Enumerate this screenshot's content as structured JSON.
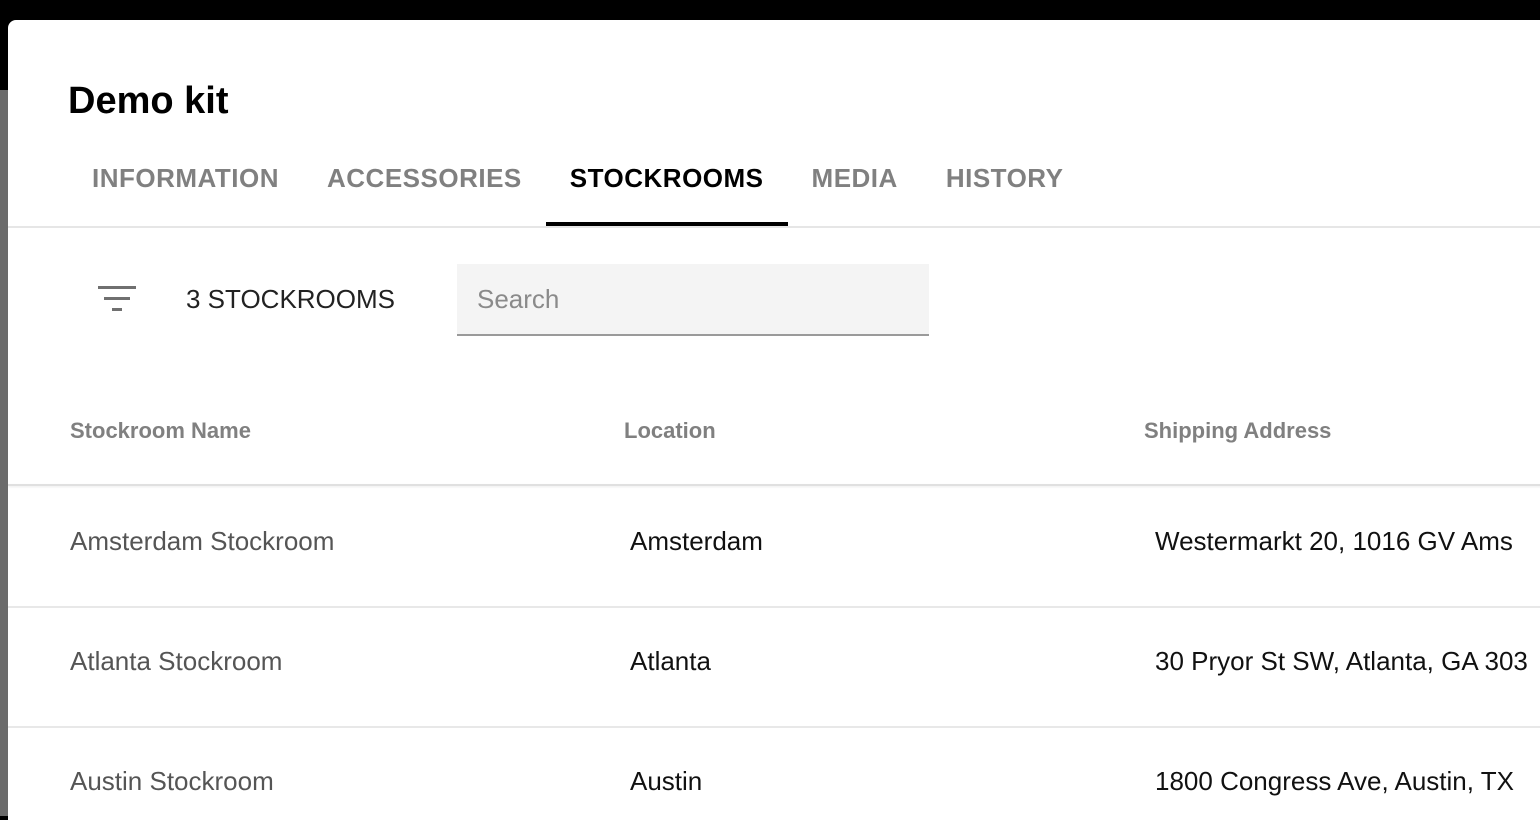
{
  "dialog": {
    "title": "Demo kit",
    "tabs": [
      {
        "label": "INFORMATION",
        "active": false
      },
      {
        "label": "ACCESSORIES",
        "active": false
      },
      {
        "label": "STOCKROOMS",
        "active": true
      },
      {
        "label": "MEDIA",
        "active": false
      },
      {
        "label": "HISTORY",
        "active": false
      }
    ]
  },
  "toolbar": {
    "filter_icon": "filter-list-icon",
    "count_label": "3 STOCKROOMS",
    "search_placeholder": "Search",
    "search_value": ""
  },
  "table": {
    "columns": [
      "Stockroom Name",
      "Location",
      "Shipping Address"
    ],
    "rows": [
      {
        "name": "Amsterdam Stockroom",
        "location": "Amsterdam",
        "address": "Westermarkt 20, 1016 GV Ams"
      },
      {
        "name": "Atlanta Stockroom",
        "location": "Atlanta",
        "address": "30 Pryor St SW, Atlanta, GA 303"
      },
      {
        "name": "Austin Stockroom",
        "location": "Austin",
        "address": "1800 Congress Ave, Austin, TX"
      }
    ]
  }
}
